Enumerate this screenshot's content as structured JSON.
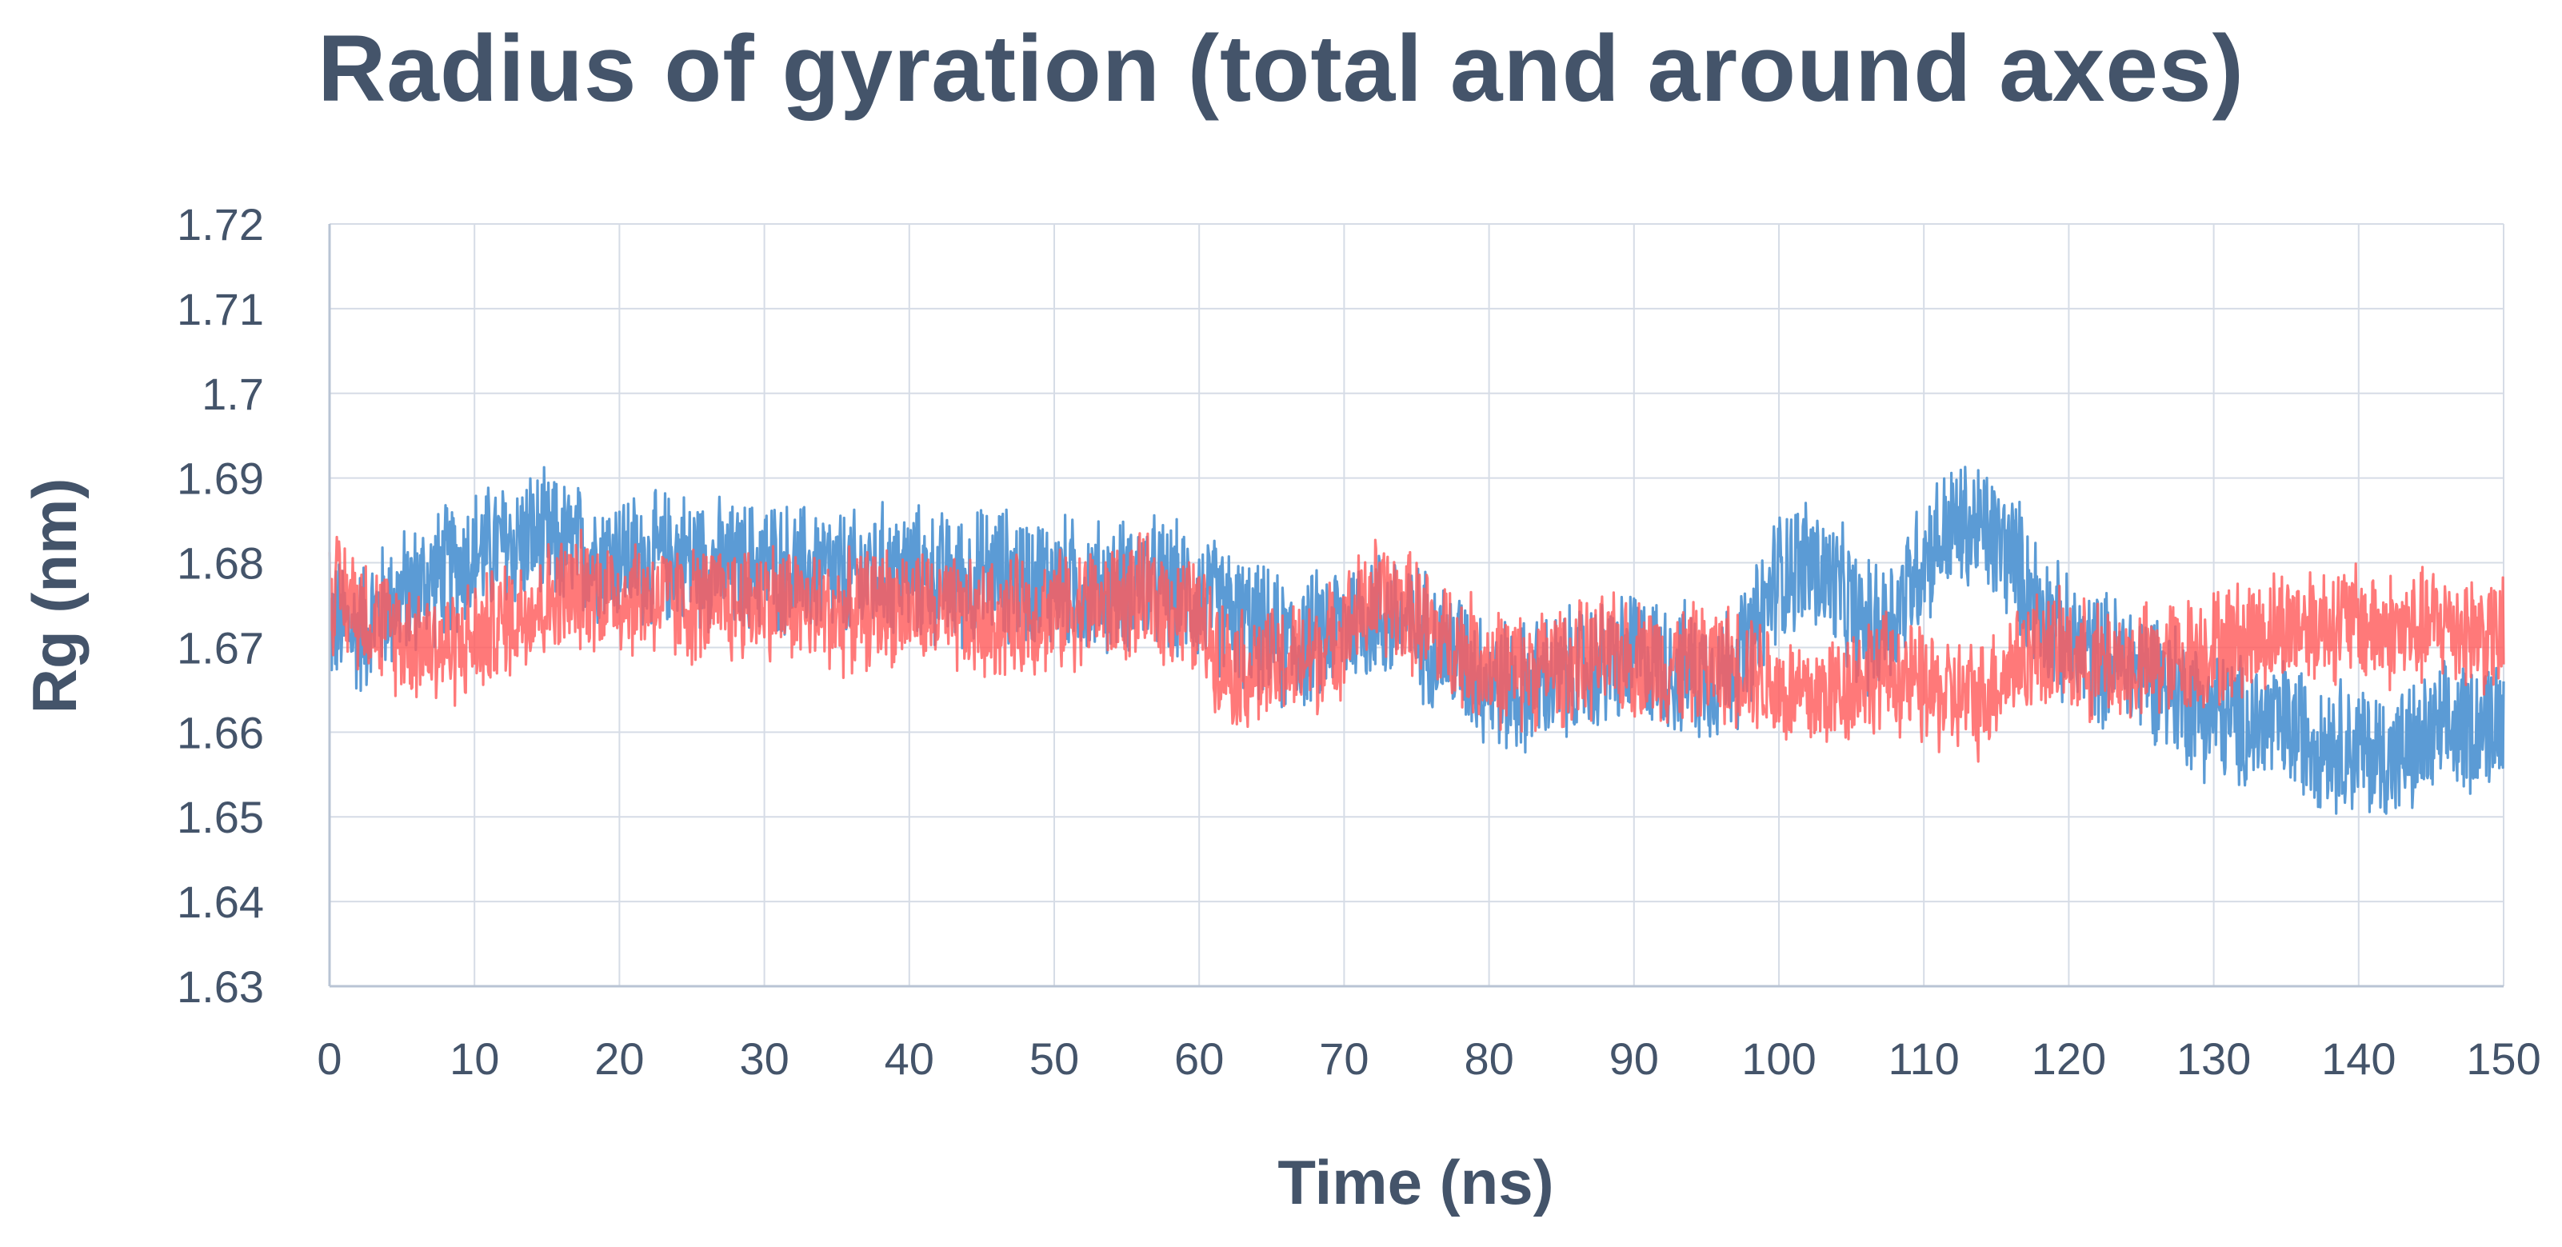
{
  "chart_data": {
    "type": "line",
    "title": "Radius of gyration (total and around axes)",
    "xlabel": "Time (ns)",
    "ylabel": "Rg (nm)",
    "xlim": [
      0,
      150
    ],
    "ylim": [
      1.63,
      1.72
    ],
    "grid": true,
    "legend": "none",
    "x_ticks": [
      "0",
      "10",
      "20",
      "30",
      "40",
      "50",
      "60",
      "70",
      "80",
      "90",
      "100",
      "110",
      "120",
      "130",
      "140",
      "150"
    ],
    "y_ticks": [
      "1.72",
      "1.71",
      "1.7",
      "1.69",
      "1.68",
      "1.67",
      "1.66",
      "1.65",
      "1.64",
      "1.63"
    ],
    "series": [
      {
        "name": "blue",
        "color": "#5b9bd5",
        "x": [
          0,
          2,
          4,
          6,
          8,
          10,
          12,
          14,
          16,
          18,
          20,
          22,
          24,
          26,
          28,
          30,
          32,
          34,
          36,
          38,
          40,
          42,
          44,
          46,
          48,
          50,
          52,
          54,
          56,
          58,
          60,
          62,
          64,
          66,
          68,
          70,
          72,
          74,
          76,
          78,
          80,
          82,
          84,
          86,
          88,
          90,
          92,
          94,
          96,
          98,
          100,
          102,
          104,
          106,
          108,
          110,
          112,
          114,
          116,
          118,
          120,
          122,
          124,
          126,
          128,
          130,
          132,
          134,
          136,
          138,
          140,
          142,
          144,
          146,
          148,
          150
        ],
        "y": [
          1.673,
          1.672,
          1.675,
          1.677,
          1.679,
          1.681,
          1.682,
          1.683,
          1.682,
          1.681,
          1.681,
          1.68,
          1.681,
          1.68,
          1.679,
          1.68,
          1.679,
          1.679,
          1.678,
          1.679,
          1.679,
          1.678,
          1.678,
          1.679,
          1.678,
          1.678,
          1.677,
          1.677,
          1.678,
          1.677,
          1.676,
          1.674,
          1.672,
          1.67,
          1.671,
          1.673,
          1.674,
          1.673,
          1.671,
          1.669,
          1.666,
          1.665,
          1.666,
          1.667,
          1.668,
          1.669,
          1.668,
          1.667,
          1.667,
          1.67,
          1.679,
          1.68,
          1.677,
          1.672,
          1.674,
          1.681,
          1.684,
          1.684,
          1.681,
          1.675,
          1.67,
          1.669,
          1.668,
          1.667,
          1.664,
          1.662,
          1.661,
          1.661,
          1.66,
          1.659,
          1.658,
          1.657,
          1.658,
          1.66,
          1.661,
          1.662
        ],
        "band": 0.009
      },
      {
        "name": "red",
        "color": "#ff5b5b",
        "x": [
          0,
          2,
          4,
          6,
          8,
          10,
          12,
          14,
          16,
          18,
          20,
          22,
          24,
          26,
          28,
          30,
          32,
          34,
          36,
          38,
          40,
          42,
          44,
          46,
          48,
          50,
          52,
          54,
          56,
          58,
          60,
          62,
          64,
          66,
          68,
          70,
          72,
          74,
          76,
          78,
          80,
          82,
          84,
          86,
          88,
          90,
          92,
          94,
          96,
          98,
          100,
          102,
          104,
          106,
          108,
          110,
          112,
          114,
          116,
          118,
          120,
          122,
          124,
          126,
          128,
          130,
          132,
          134,
          136,
          138,
          140,
          142,
          144,
          146,
          148,
          150
        ],
        "y": [
          1.677,
          1.675,
          1.672,
          1.671,
          1.67,
          1.671,
          1.673,
          1.675,
          1.676,
          1.677,
          1.676,
          1.676,
          1.675,
          1.675,
          1.675,
          1.676,
          1.675,
          1.674,
          1.674,
          1.675,
          1.675,
          1.674,
          1.673,
          1.673,
          1.674,
          1.674,
          1.675,
          1.675,
          1.676,
          1.675,
          1.673,
          1.668,
          1.667,
          1.668,
          1.669,
          1.672,
          1.676,
          1.675,
          1.672,
          1.67,
          1.668,
          1.667,
          1.668,
          1.668,
          1.669,
          1.669,
          1.668,
          1.668,
          1.668,
          1.668,
          1.665,
          1.664,
          1.665,
          1.667,
          1.667,
          1.665,
          1.664,
          1.664,
          1.668,
          1.67,
          1.669,
          1.668,
          1.668,
          1.668,
          1.669,
          1.67,
          1.671,
          1.672,
          1.673,
          1.673,
          1.673,
          1.672,
          1.672,
          1.673,
          1.672,
          1.671
        ],
        "band": 0.008
      }
    ]
  }
}
